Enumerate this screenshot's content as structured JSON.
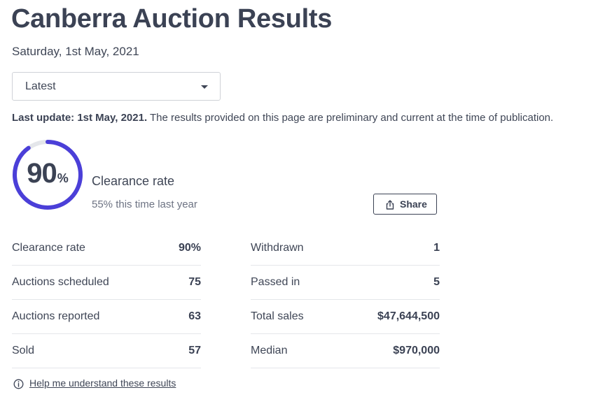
{
  "page": {
    "title": "Canberra Auction Results",
    "date": "Saturday, 1st May, 2021"
  },
  "dropdown": {
    "selected": "Latest"
  },
  "update": {
    "label": "Last update: 1st May, 2021.",
    "text": " The results provided on this page are preliminary and current at the time of publication."
  },
  "clearance": {
    "value": "90",
    "percent_symbol": "%",
    "fraction": 0.9,
    "label": "Clearance rate",
    "last_year": "55% this time last year",
    "ring_color": "#4b3fd8",
    "track_color": "#e4e6ea"
  },
  "share": {
    "label": "Share",
    "icon": "share-icon"
  },
  "stats": {
    "left": [
      {
        "label": "Clearance rate",
        "value": "90%"
      },
      {
        "label": "Auctions scheduled",
        "value": "75"
      },
      {
        "label": "Auctions reported",
        "value": "63"
      },
      {
        "label": "Sold",
        "value": "57"
      }
    ],
    "right": [
      {
        "label": "Withdrawn",
        "value": "1"
      },
      {
        "label": "Passed in",
        "value": "5"
      },
      {
        "label": "Total sales",
        "value": "$47,644,500"
      },
      {
        "label": "Median",
        "value": "$970,000"
      }
    ]
  },
  "help": {
    "label": "Help me understand these results",
    "icon": "info-icon"
  }
}
